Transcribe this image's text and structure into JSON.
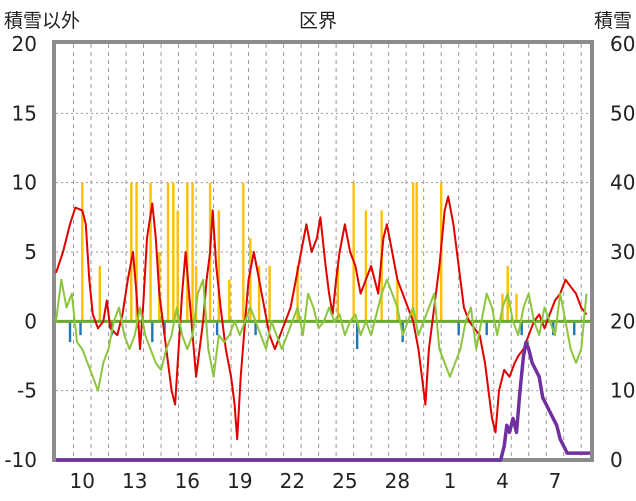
{
  "chart_data": {
    "type": "line",
    "title": "区界",
    "left_axis": {
      "label": "積雪以外",
      "ticks": [
        "20",
        "15",
        "10",
        "5",
        "0",
        "-5",
        "-10"
      ],
      "range": [
        -10,
        20
      ]
    },
    "right_axis": {
      "label": "積雪",
      "ticks": [
        "60",
        "50",
        "40",
        "30",
        "20",
        "10",
        "0"
      ],
      "range": [
        0,
        60
      ]
    },
    "x_axis": {
      "ticks": [
        "10",
        "13",
        "16",
        "19",
        "22",
        "25",
        "28",
        "1",
        "4",
        "7"
      ],
      "x_range": [
        0,
        30.5
      ],
      "tick_positions": [
        1.5,
        4.5,
        7.5,
        10.5,
        13.5,
        16.5,
        19.5,
        22.5,
        25.5,
        28.5
      ]
    },
    "grid": true,
    "series": [
      {
        "color": "#e00000",
        "axis": "left",
        "points": [
          [
            0,
            3.5
          ],
          [
            0.4,
            5
          ],
          [
            0.8,
            7
          ],
          [
            1.1,
            8.2
          ],
          [
            1.5,
            8
          ],
          [
            1.7,
            7
          ],
          [
            1.9,
            3
          ],
          [
            2.1,
            0.5
          ],
          [
            2.4,
            -0.5
          ],
          [
            2.7,
            0
          ],
          [
            2.9,
            1.5
          ],
          [
            3.1,
            -0.5
          ],
          [
            3.5,
            -1
          ],
          [
            3.8,
            0.5
          ],
          [
            4.1,
            3
          ],
          [
            4.4,
            5
          ],
          [
            4.6,
            2
          ],
          [
            4.8,
            -2
          ],
          [
            5.0,
            1.5
          ],
          [
            5.2,
            6
          ],
          [
            5.5,
            8.5
          ],
          [
            5.7,
            6
          ],
          [
            5.9,
            2
          ],
          [
            6.1,
            0
          ],
          [
            6.3,
            -2
          ],
          [
            6.6,
            -5
          ],
          [
            6.8,
            -6
          ],
          [
            7.0,
            -2
          ],
          [
            7.2,
            2
          ],
          [
            7.4,
            5
          ],
          [
            7.6,
            2
          ],
          [
            7.8,
            -1
          ],
          [
            8.0,
            -4
          ],
          [
            8.2,
            -2
          ],
          [
            8.4,
            0
          ],
          [
            8.6,
            3
          ],
          [
            8.8,
            5
          ],
          [
            8.95,
            8
          ],
          [
            9.15,
            4
          ],
          [
            9.4,
            1
          ],
          [
            9.7,
            -2
          ],
          [
            10.0,
            -4
          ],
          [
            10.2,
            -6
          ],
          [
            10.35,
            -8.5
          ],
          [
            10.55,
            -4
          ],
          [
            10.8,
            0
          ],
          [
            11.0,
            3
          ],
          [
            11.3,
            5
          ],
          [
            11.6,
            3
          ],
          [
            11.9,
            1
          ],
          [
            12.2,
            -1
          ],
          [
            12.5,
            -2
          ],
          [
            12.8,
            -1
          ],
          [
            13.1,
            0
          ],
          [
            13.4,
            1
          ],
          [
            13.7,
            3
          ],
          [
            14.0,
            5
          ],
          [
            14.3,
            7
          ],
          [
            14.6,
            5
          ],
          [
            14.9,
            6
          ],
          [
            15.1,
            7.5
          ],
          [
            15.4,
            4
          ],
          [
            15.6,
            2
          ],
          [
            15.8,
            0.5
          ],
          [
            16.0,
            3
          ],
          [
            16.2,
            5
          ],
          [
            16.5,
            7
          ],
          [
            16.8,
            5
          ],
          [
            17.1,
            4
          ],
          [
            17.4,
            2
          ],
          [
            17.7,
            3
          ],
          [
            18.0,
            4
          ],
          [
            18.4,
            2
          ],
          [
            18.7,
            6
          ],
          [
            18.9,
            7
          ],
          [
            19.2,
            5
          ],
          [
            19.5,
            3
          ],
          [
            19.8,
            2
          ],
          [
            20.1,
            1
          ],
          [
            20.4,
            0
          ],
          [
            20.7,
            -2
          ],
          [
            20.9,
            -4
          ],
          [
            21.1,
            -6
          ],
          [
            21.3,
            -2
          ],
          [
            21.6,
            1
          ],
          [
            21.9,
            4
          ],
          [
            22.2,
            8
          ],
          [
            22.4,
            9
          ],
          [
            22.7,
            7
          ],
          [
            22.9,
            5
          ],
          [
            23.1,
            3
          ],
          [
            23.3,
            1
          ],
          [
            23.6,
            0
          ],
          [
            23.9,
            -0.5
          ],
          [
            24.2,
            -1
          ],
          [
            24.5,
            -3
          ],
          [
            24.7,
            -5
          ],
          [
            24.9,
            -7
          ],
          [
            25.1,
            -8
          ],
          [
            25.3,
            -5
          ],
          [
            25.6,
            -3.5
          ],
          [
            25.9,
            -4
          ],
          [
            26.2,
            -3
          ],
          [
            26.4,
            -2.5
          ],
          [
            26.7,
            -2
          ],
          [
            27.0,
            -1
          ],
          [
            27.3,
            0
          ],
          [
            27.6,
            0.5
          ],
          [
            27.9,
            -0.5
          ],
          [
            28.2,
            0.5
          ],
          [
            28.5,
            1.5
          ],
          [
            28.8,
            2
          ],
          [
            29.1,
            3
          ],
          [
            29.4,
            2.5
          ],
          [
            29.7,
            2
          ],
          [
            30.0,
            1
          ],
          [
            30.3,
            0.5
          ]
        ]
      },
      {
        "color": "#8cc63f",
        "axis": "left",
        "points": [
          [
            0,
            0
          ],
          [
            0.3,
            3
          ],
          [
            0.6,
            1
          ],
          [
            0.9,
            2
          ],
          [
            1.2,
            -1.5
          ],
          [
            1.5,
            -2
          ],
          [
            1.8,
            -3
          ],
          [
            2.1,
            -4
          ],
          [
            2.4,
            -5
          ],
          [
            2.7,
            -3
          ],
          [
            3.0,
            -2
          ],
          [
            3.3,
            0
          ],
          [
            3.6,
            1
          ],
          [
            3.9,
            -1
          ],
          [
            4.2,
            -2
          ],
          [
            4.5,
            -1
          ],
          [
            4.8,
            1
          ],
          [
            5.1,
            -1
          ],
          [
            5.4,
            -2
          ],
          [
            5.7,
            -3
          ],
          [
            6.0,
            -3.5
          ],
          [
            6.3,
            -2
          ],
          [
            6.6,
            -1
          ],
          [
            6.9,
            1
          ],
          [
            7.2,
            -1
          ],
          [
            7.5,
            -2
          ],
          [
            7.8,
            -1
          ],
          [
            8.1,
            2
          ],
          [
            8.4,
            3
          ],
          [
            8.7,
            -2
          ],
          [
            9.0,
            -4
          ],
          [
            9.3,
            -1
          ],
          [
            9.6,
            -1.5
          ],
          [
            9.9,
            -1
          ],
          [
            10.2,
            0
          ],
          [
            10.5,
            -1
          ],
          [
            10.8,
            0
          ],
          [
            11.1,
            1
          ],
          [
            11.4,
            0
          ],
          [
            11.7,
            -1
          ],
          [
            12.0,
            -2
          ],
          [
            12.3,
            0
          ],
          [
            12.6,
            -1
          ],
          [
            12.9,
            -2
          ],
          [
            13.2,
            -1
          ],
          [
            13.5,
            0
          ],
          [
            13.8,
            1
          ],
          [
            14.1,
            -1
          ],
          [
            14.4,
            2
          ],
          [
            14.7,
            1
          ],
          [
            15.0,
            -0.5
          ],
          [
            15.3,
            0
          ],
          [
            15.6,
            1
          ],
          [
            15.9,
            0
          ],
          [
            16.2,
            0.5
          ],
          [
            16.5,
            -1
          ],
          [
            16.8,
            0
          ],
          [
            17.1,
            0.5
          ],
          [
            17.4,
            -1
          ],
          [
            17.7,
            0
          ],
          [
            18.0,
            -1
          ],
          [
            18.3,
            0.5
          ],
          [
            18.6,
            2
          ],
          [
            18.9,
            3
          ],
          [
            19.2,
            2
          ],
          [
            19.5,
            1
          ],
          [
            19.8,
            -1
          ],
          [
            20.1,
            0
          ],
          [
            20.4,
            1
          ],
          [
            20.7,
            -1
          ],
          [
            21.0,
            0
          ],
          [
            21.3,
            1
          ],
          [
            21.6,
            2
          ],
          [
            21.9,
            -2
          ],
          [
            22.2,
            -3
          ],
          [
            22.5,
            -4
          ],
          [
            22.8,
            -3
          ],
          [
            23.1,
            -2
          ],
          [
            23.4,
            0
          ],
          [
            23.7,
            1
          ],
          [
            24.0,
            -2
          ],
          [
            24.3,
            0
          ],
          [
            24.6,
            2
          ],
          [
            24.9,
            1
          ],
          [
            25.2,
            -1
          ],
          [
            25.5,
            1
          ],
          [
            25.8,
            2
          ],
          [
            26.1,
            0
          ],
          [
            26.4,
            -1
          ],
          [
            26.7,
            1
          ],
          [
            27.0,
            2
          ],
          [
            27.3,
            0
          ],
          [
            27.6,
            -1
          ],
          [
            27.9,
            1
          ],
          [
            28.2,
            0
          ],
          [
            28.5,
            -1
          ],
          [
            28.8,
            2
          ],
          [
            29.1,
            0
          ],
          [
            29.4,
            -2
          ],
          [
            29.7,
            -3
          ],
          [
            30.0,
            -2
          ],
          [
            30.3,
            2
          ]
        ]
      },
      {
        "color": "#7030a0",
        "axis": "right",
        "points": [
          [
            0,
            0
          ],
          [
            25.4,
            0
          ],
          [
            25.6,
            2
          ],
          [
            25.75,
            5
          ],
          [
            25.9,
            4
          ],
          [
            26.1,
            6
          ],
          [
            26.3,
            4
          ],
          [
            26.5,
            10
          ],
          [
            26.7,
            15
          ],
          [
            26.85,
            17
          ],
          [
            27.0,
            16
          ],
          [
            27.2,
            14
          ],
          [
            27.4,
            13
          ],
          [
            27.6,
            12
          ],
          [
            27.8,
            9
          ],
          [
            28.0,
            8
          ],
          [
            28.2,
            7
          ],
          [
            28.4,
            6
          ],
          [
            28.6,
            5
          ],
          [
            28.8,
            3
          ],
          [
            29.0,
            2
          ],
          [
            29.2,
            1
          ],
          [
            29.4,
            1
          ],
          [
            29.6,
            1
          ],
          [
            29.8,
            1
          ],
          [
            30.0,
            1
          ],
          [
            30.2,
            1
          ],
          [
            30.5,
            1
          ]
        ]
      },
      {
        "color": "#ffc000",
        "axis": "left",
        "bars": [
          [
            1.5,
            10
          ],
          [
            2.5,
            4
          ],
          [
            4.3,
            10
          ],
          [
            4.6,
            10
          ],
          [
            5.4,
            10
          ],
          [
            5.9,
            5
          ],
          [
            6.4,
            10
          ],
          [
            6.7,
            10
          ],
          [
            6.95,
            8
          ],
          [
            7.5,
            10
          ],
          [
            7.8,
            10
          ],
          [
            8.0,
            4
          ],
          [
            8.8,
            10
          ],
          [
            9.3,
            8
          ],
          [
            9.9,
            3
          ],
          [
            10.7,
            10
          ],
          [
            11.1,
            6
          ],
          [
            11.6,
            4
          ],
          [
            12.2,
            4
          ],
          [
            13.8,
            4
          ],
          [
            16.1,
            4
          ],
          [
            17.0,
            10
          ],
          [
            17.7,
            8
          ],
          [
            18.6,
            8
          ],
          [
            19.5,
            3
          ],
          [
            20.4,
            10
          ],
          [
            20.6,
            10
          ],
          [
            22.0,
            10
          ],
          [
            25.5,
            2
          ],
          [
            25.8,
            4
          ],
          [
            26.3,
            2
          ]
        ]
      },
      {
        "color": "#1f77b4",
        "axis": "left",
        "bars": [
          [
            0.8,
            -1.5
          ],
          [
            1.4,
            -1
          ],
          [
            3.2,
            -1
          ],
          [
            4.7,
            -0.5
          ],
          [
            5.5,
            -1.5
          ],
          [
            6.2,
            -1
          ],
          [
            9.2,
            -1
          ],
          [
            11.4,
            -1
          ],
          [
            17.2,
            -2
          ],
          [
            19.8,
            -1.5
          ],
          [
            23.0,
            -1
          ],
          [
            24.6,
            -1
          ],
          [
            26.6,
            -1
          ],
          [
            28.4,
            -1
          ],
          [
            29.6,
            -1
          ]
        ]
      },
      {
        "color": "#6aaa30",
        "axis": "left",
        "values": [
          0
        ]
      }
    ]
  }
}
